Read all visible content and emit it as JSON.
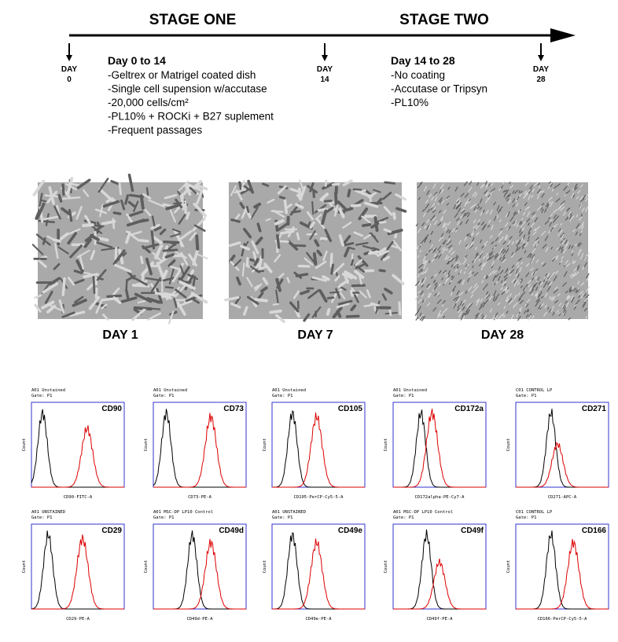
{
  "timeline": {
    "stages": [
      "STAGE ONE",
      "STAGE TWO"
    ],
    "days": [
      {
        "label": "DAY",
        "value": "0"
      },
      {
        "label": "DAY",
        "value": "14"
      },
      {
        "label": "DAY",
        "value": "28"
      }
    ],
    "blocks": [
      {
        "title": "Day 0 to 14",
        "items": [
          "-Geltrex or Matrigel coated dish",
          "-Single cell supension w/accutase",
          "-20,000 cells/cm²",
          "-PL10% + ROCKi + B27 suplement",
          "-Frequent passages"
        ]
      },
      {
        "title": "Day 14 to 28",
        "items": [
          "-No coating",
          "-Accutase or Tripsyn",
          "-PL10%"
        ]
      }
    ]
  },
  "photos": [
    {
      "label": "DAY 1"
    },
    {
      "label": "DAY 7"
    },
    {
      "label": "DAY 28"
    }
  ],
  "panels": [
    {
      "header": [
        "A01 Unstained",
        "Gate: P1"
      ],
      "marker": "CD90",
      "xlabel": "CD90-FITC-A",
      "ylabel": "Count"
    },
    {
      "header": [
        "A01 Unstained",
        "Gate: P1"
      ],
      "marker": "CD73",
      "xlabel": "CD73-PE-A",
      "ylabel": "Count"
    },
    {
      "header": [
        "A01 Unstained",
        "Gate: P1"
      ],
      "marker": "CD105",
      "xlabel": "CD105-PerCP-Cy5-5-A",
      "ylabel": "Count"
    },
    {
      "header": [
        "A01 Unstained",
        "Gate: P1"
      ],
      "marker": "CD172a",
      "xlabel": "CD172alpha-PE-Cy7-A",
      "ylabel": "Count"
    },
    {
      "header": [
        "C01 CONTROL LP",
        "Gate: P1"
      ],
      "marker": "CD271",
      "xlabel": "CD271-APC-A",
      "ylabel": "Count"
    },
    {
      "header": [
        "A01 UNSTAINED",
        "Gate: P1"
      ],
      "marker": "CD29",
      "xlabel": "CD29-PE-A",
      "ylabel": "Count"
    },
    {
      "header": [
        "A01 MSC-DP LP10 Control",
        "Gate: P1"
      ],
      "marker": "CD49d",
      "xlabel": "CD49d-PE-A",
      "ylabel": "Count"
    },
    {
      "header": [
        "A01 UNSTAINED",
        "Gate: P1"
      ],
      "marker": "CD49e",
      "xlabel": "CD49e-PE-A",
      "ylabel": "Count"
    },
    {
      "header": [
        "A01 MSC-DP LP10 Control",
        "Gate: P1"
      ],
      "marker": "CD49f",
      "xlabel": "CD49f-PE-A",
      "ylabel": "Count"
    },
    {
      "header": [
        "C01 CONTROL LP",
        "Gate: P1"
      ],
      "marker": "CD166",
      "xlabel": "CD166-PerCP-Cy5-5-A",
      "ylabel": "Count"
    }
  ]
}
